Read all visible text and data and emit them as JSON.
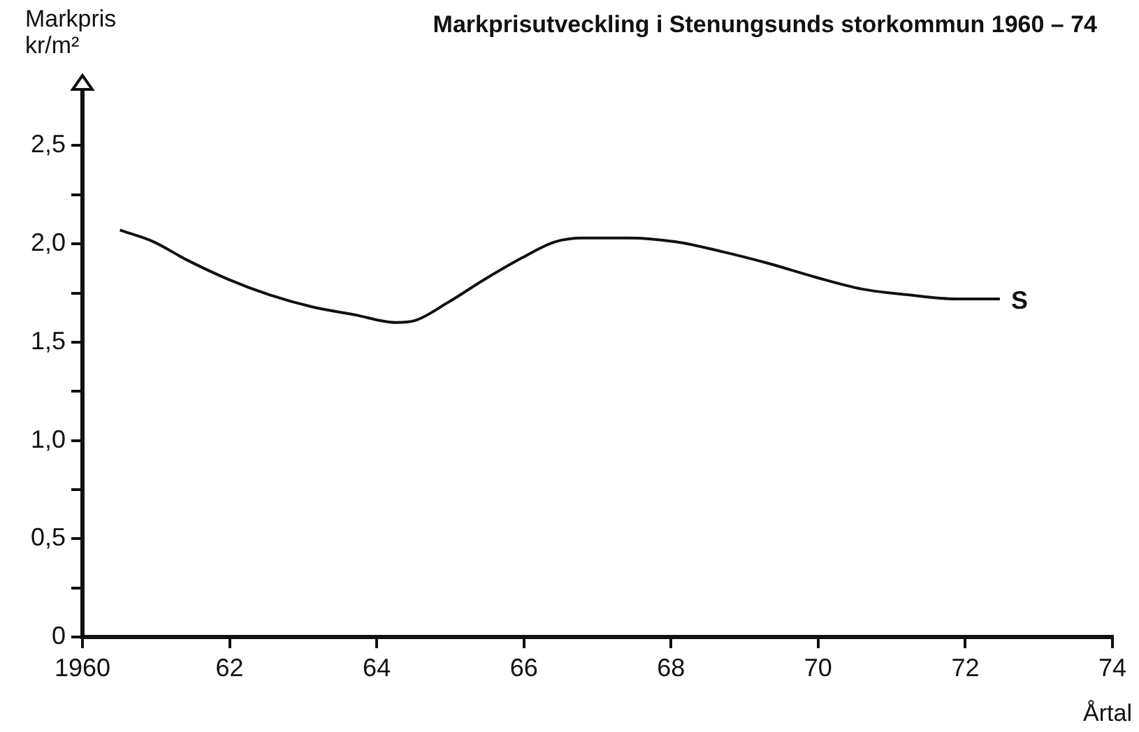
{
  "chart_data": {
    "type": "line",
    "title": "Markprisutveckling i Stenungsunds storkommun 1960 – 74",
    "xlabel": "Årtal",
    "ylabel": "Markpris kr/m²",
    "xlim": [
      1960,
      1974
    ],
    "ylim": [
      0,
      2.8
    ],
    "xticks": [
      1960,
      {
        "value": 1962,
        "label": "62"
      },
      {
        "value": 1964,
        "label": "64"
      },
      {
        "value": 1966,
        "label": "66"
      },
      {
        "value": 1968,
        "label": "68"
      },
      {
        "value": 1970,
        "label": "70"
      },
      {
        "value": 1972,
        "label": "72"
      },
      {
        "value": 1974,
        "label": "74"
      }
    ],
    "yticks": [
      {
        "value": 0,
        "label": "0"
      },
      {
        "value": 0.25,
        "label": null
      },
      {
        "value": 0.5,
        "label": "0,5"
      },
      {
        "value": 0.75,
        "label": null
      },
      {
        "value": 1,
        "label": "1,0"
      },
      {
        "value": 1.25,
        "label": null
      },
      {
        "value": 1.5,
        "label": "1,5"
      },
      {
        "value": 1.75,
        "label": null
      },
      {
        "value": 2,
        "label": "2,0"
      },
      {
        "value": 2.25,
        "label": null
      },
      {
        "value": 2.5,
        "label": "2,5"
      }
    ],
    "grid": false,
    "legend": false,
    "marker": "none",
    "line_style": "solid",
    "series": [
      {
        "name": "S",
        "color": "#111111",
        "x": [
          1960.51,
          1960.97,
          1961.41,
          1961.98,
          1962.55,
          1963.12,
          1963.69,
          1964.26,
          1964.52,
          1964.96,
          1965.47,
          1965.98,
          1966.42,
          1966.8,
          1967.43,
          1968.07,
          1968.7,
          1969.33,
          1969.97,
          1970.6,
          1971.24,
          1971.87,
          1972.47
        ],
        "values": [
          2.07,
          2.01,
          1.92,
          1.82,
          1.74,
          1.68,
          1.64,
          1.6,
          1.61,
          1.7,
          1.82,
          1.93,
          2.01,
          2.03,
          2.03,
          2.01,
          1.96,
          1.9,
          1.83,
          1.77,
          1.74,
          1.72,
          1.72
        ]
      }
    ]
  }
}
